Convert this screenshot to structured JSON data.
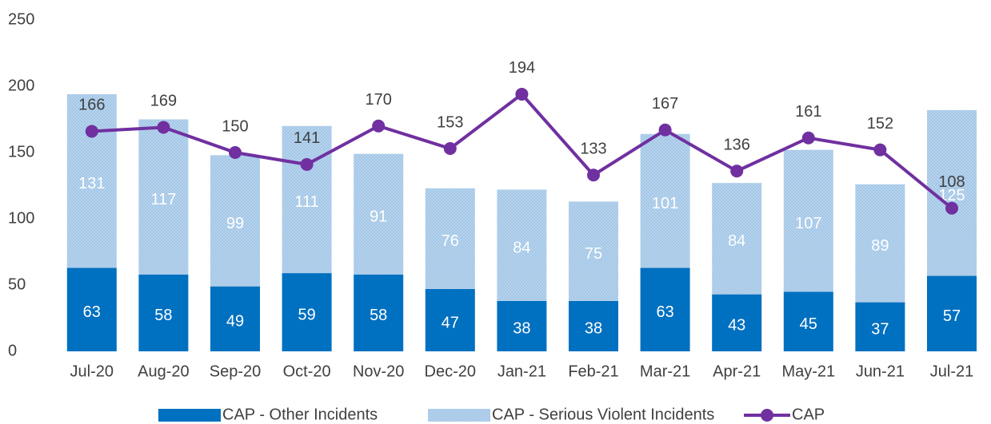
{
  "chart_data": {
    "type": "bar",
    "stacked": true,
    "categories": [
      "Jul-20",
      "Aug-20",
      "Sep-20",
      "Oct-20",
      "Nov-20",
      "Dec-20",
      "Jan-21",
      "Feb-21",
      "Mar-21",
      "Apr-21",
      "May-21",
      "Jun-21",
      "Jul-21"
    ],
    "series": [
      {
        "name": "CAP - Other Incidents",
        "type": "bar",
        "color": "#0070c0",
        "values": [
          63,
          58,
          49,
          59,
          58,
          47,
          38,
          38,
          63,
          43,
          45,
          37,
          57
        ]
      },
      {
        "name": "CAP - Serious Violent Incidents",
        "type": "bar",
        "color": "#9dc3e6",
        "values": [
          131,
          117,
          99,
          111,
          91,
          76,
          84,
          75,
          101,
          84,
          107,
          89,
          125
        ]
      },
      {
        "name": "CAP",
        "type": "line",
        "color": "#7030a0",
        "values": [
          166,
          169,
          150,
          141,
          170,
          153,
          194,
          133,
          167,
          136,
          161,
          152,
          108
        ]
      }
    ],
    "ylim": [
      0,
      250
    ],
    "yticks": [
      0,
      50,
      100,
      150,
      200,
      250
    ],
    "grid": false,
    "legend": "bottom"
  }
}
